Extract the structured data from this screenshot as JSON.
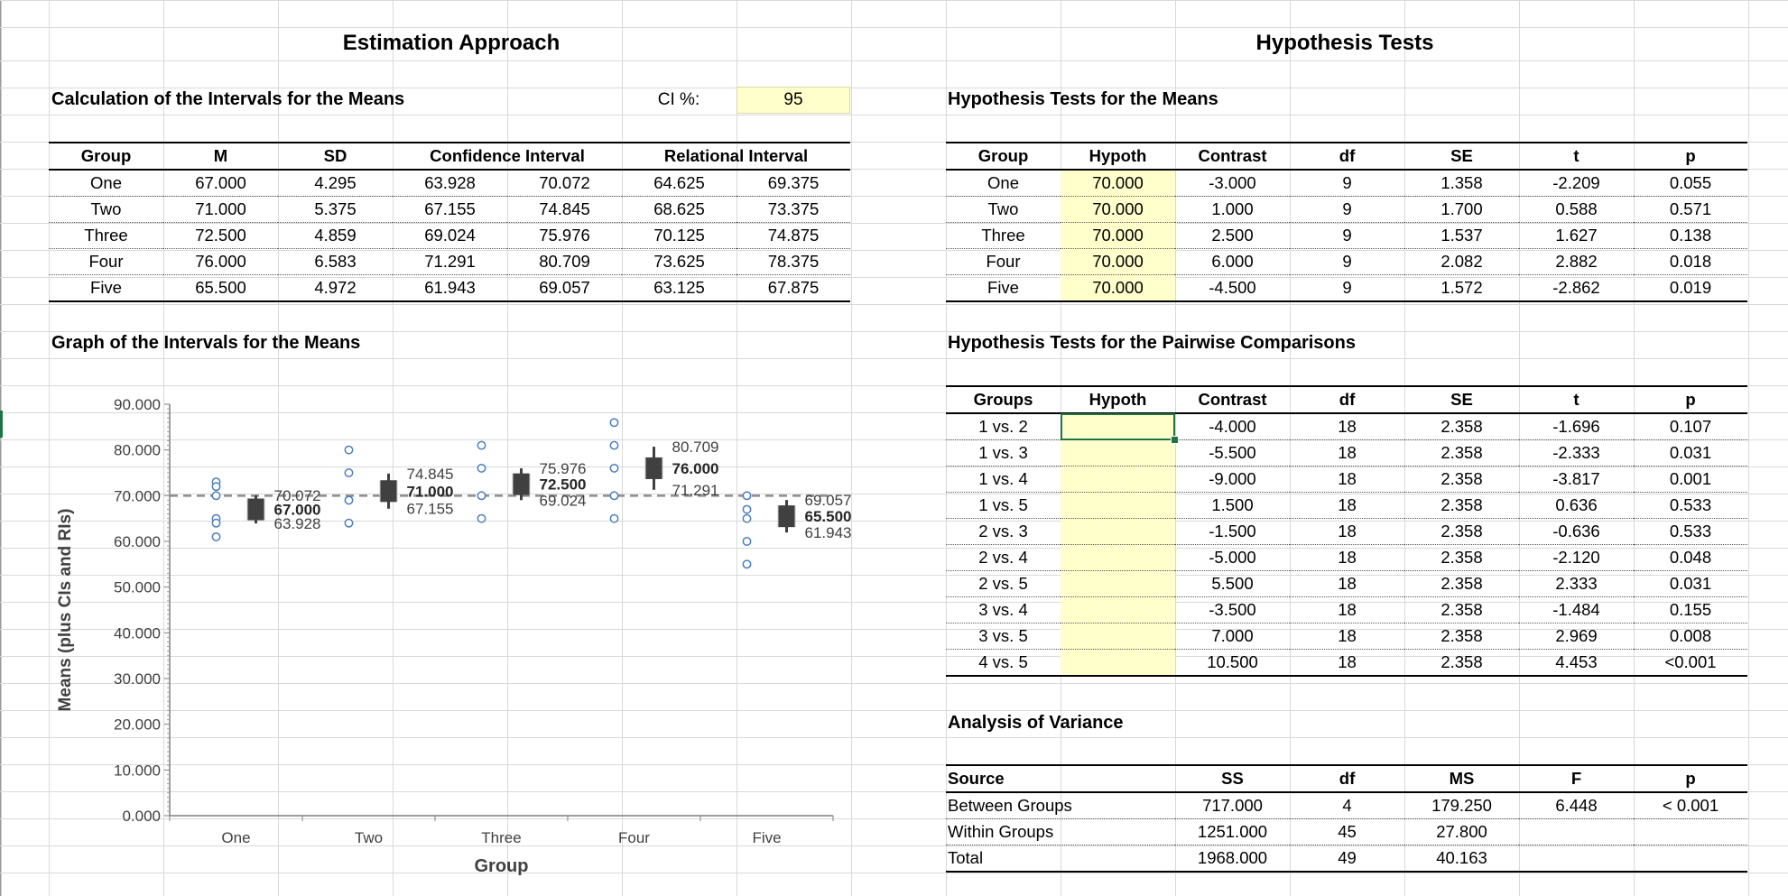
{
  "estimation": {
    "title": "Estimation Approach",
    "calc_title": "Calculation of the Intervals for the Means",
    "ci_label": "CI %:",
    "ci_value": "95",
    "headers": {
      "group": "Group",
      "m": "M",
      "sd": "SD",
      "ci": "Confidence Interval",
      "ri": "Relational Interval"
    },
    "rows": [
      {
        "group": "One",
        "m": "67.000",
        "sd": "4.295",
        "ci_lo": "63.928",
        "ci_hi": "70.072",
        "ri_lo": "64.625",
        "ri_hi": "69.375"
      },
      {
        "group": "Two",
        "m": "71.000",
        "sd": "5.375",
        "ci_lo": "67.155",
        "ci_hi": "74.845",
        "ri_lo": "68.625",
        "ri_hi": "73.375"
      },
      {
        "group": "Three",
        "m": "72.500",
        "sd": "4.859",
        "ci_lo": "69.024",
        "ci_hi": "75.976",
        "ri_lo": "70.125",
        "ri_hi": "74.875"
      },
      {
        "group": "Four",
        "m": "76.000",
        "sd": "6.583",
        "ci_lo": "71.291",
        "ci_hi": "80.709",
        "ri_lo": "73.625",
        "ri_hi": "78.375"
      },
      {
        "group": "Five",
        "m": "65.500",
        "sd": "4.972",
        "ci_lo": "61.943",
        "ci_hi": "69.057",
        "ri_lo": "63.125",
        "ri_hi": "67.875"
      }
    ],
    "graph_title": "Graph of the Intervals for the Means"
  },
  "hypothesis": {
    "title": "Hypothesis Tests",
    "means_title": "Hypothesis Tests for the Means",
    "means_headers": {
      "group": "Group",
      "hypoth": "Hypoth",
      "contrast": "Contrast",
      "df": "df",
      "se": "SE",
      "t": "t",
      "p": "p"
    },
    "means_rows": [
      {
        "group": "One",
        "hypoth": "70.000",
        "contrast": "-3.000",
        "df": "9",
        "se": "1.358",
        "t": "-2.209",
        "p": "0.055"
      },
      {
        "group": "Two",
        "hypoth": "70.000",
        "contrast": "1.000",
        "df": "9",
        "se": "1.700",
        "t": "0.588",
        "p": "0.571"
      },
      {
        "group": "Three",
        "hypoth": "70.000",
        "contrast": "2.500",
        "df": "9",
        "se": "1.537",
        "t": "1.627",
        "p": "0.138"
      },
      {
        "group": "Four",
        "hypoth": "70.000",
        "contrast": "6.000",
        "df": "9",
        "se": "2.082",
        "t": "2.882",
        "p": "0.018"
      },
      {
        "group": "Five",
        "hypoth": "70.000",
        "contrast": "-4.500",
        "df": "9",
        "se": "1.572",
        "t": "-2.862",
        "p": "0.019"
      }
    ],
    "pair_title": "Hypothesis Tests for the Pairwise Comparisons",
    "pair_headers": {
      "groups": "Groups",
      "hypoth": "Hypoth",
      "contrast": "Contrast",
      "df": "df",
      "se": "SE",
      "t": "t",
      "p": "p"
    },
    "pair_rows": [
      {
        "groups": "1 vs. 2",
        "hypoth": "",
        "contrast": "-4.000",
        "df": "18",
        "se": "2.358",
        "t": "-1.696",
        "p": "0.107"
      },
      {
        "groups": "1 vs. 3",
        "hypoth": "",
        "contrast": "-5.500",
        "df": "18",
        "se": "2.358",
        "t": "-2.333",
        "p": "0.031"
      },
      {
        "groups": "1 vs. 4",
        "hypoth": "",
        "contrast": "-9.000",
        "df": "18",
        "se": "2.358",
        "t": "-3.817",
        "p": "0.001"
      },
      {
        "groups": "1 vs. 5",
        "hypoth": "",
        "contrast": "1.500",
        "df": "18",
        "se": "2.358",
        "t": "0.636",
        "p": "0.533"
      },
      {
        "groups": "2 vs. 3",
        "hypoth": "",
        "contrast": "-1.500",
        "df": "18",
        "se": "2.358",
        "t": "-0.636",
        "p": "0.533"
      },
      {
        "groups": "2 vs. 4",
        "hypoth": "",
        "contrast": "-5.000",
        "df": "18",
        "se": "2.358",
        "t": "-2.120",
        "p": "0.048"
      },
      {
        "groups": "2 vs. 5",
        "hypoth": "",
        "contrast": "5.500",
        "df": "18",
        "se": "2.358",
        "t": "2.333",
        "p": "0.031"
      },
      {
        "groups": "3 vs. 4",
        "hypoth": "",
        "contrast": "-3.500",
        "df": "18",
        "se": "2.358",
        "t": "-1.484",
        "p": "0.155"
      },
      {
        "groups": "3 vs. 5",
        "hypoth": "",
        "contrast": "7.000",
        "df": "18",
        "se": "2.358",
        "t": "2.969",
        "p": "0.008"
      },
      {
        "groups": "4 vs. 5",
        "hypoth": "",
        "contrast": "10.500",
        "df": "18",
        "se": "2.358",
        "t": "4.453",
        "p": "<0.001"
      }
    ],
    "anova_title": "Analysis of Variance",
    "anova_headers": {
      "source": "Source",
      "ss": "SS",
      "df": "df",
      "ms": "MS",
      "f": "F",
      "p": "p"
    },
    "anova_rows": [
      {
        "source": "Between Groups",
        "ss": "717.000",
        "df": "4",
        "ms": "179.250",
        "f": "6.448",
        "p": "< 0.001"
      },
      {
        "source": "Within Groups",
        "ss": "1251.000",
        "df": "45",
        "ms": "27.800",
        "f": "",
        "p": ""
      },
      {
        "source": "Total",
        "ss": "1968.000",
        "df": "49",
        "ms": "40.163",
        "f": "",
        "p": ""
      }
    ]
  },
  "colors": {
    "input_fill": "#ffffcc",
    "selection": "#217346",
    "marker": "#4a7ebb",
    "mean_bar": "#404040",
    "ri_bar": "#c8c8c8"
  },
  "chart_data": {
    "type": "scatter",
    "xlabel": "Group",
    "ylabel": "Means (plus CIs and RIs)",
    "categories": [
      "One",
      "Two",
      "Three",
      "Four",
      "Five"
    ],
    "ylim": [
      0,
      90
    ],
    "yticks": [
      "0.000",
      "10.000",
      "20.000",
      "30.000",
      "40.000",
      "50.000",
      "60.000",
      "70.000",
      "80.000",
      "90.000"
    ],
    "reference_line": 70,
    "means": [
      67.0,
      71.0,
      72.5,
      76.0,
      65.5
    ],
    "ci_lower": [
      63.928,
      67.155,
      69.024,
      71.291,
      61.943
    ],
    "ci_upper": [
      70.072,
      74.845,
      75.976,
      80.709,
      69.057
    ],
    "ri_lower": [
      64.625,
      68.625,
      70.125,
      73.625,
      63.125
    ],
    "ri_upper": [
      69.375,
      73.375,
      74.875,
      78.375,
      67.875
    ],
    "labels": [
      {
        "hi": "70.072",
        "mean": "67.000",
        "lo": "63.928"
      },
      {
        "hi": "74.845",
        "mean": "71.000",
        "lo": "67.155"
      },
      {
        "hi": "75.976",
        "mean": "72.500",
        "lo": "69.024"
      },
      {
        "hi": "80.709",
        "mean": "76.000",
        "lo": "71.291"
      },
      {
        "hi": "69.057",
        "mean": "65.500",
        "lo": "61.943"
      }
    ],
    "raw_points": [
      [
        73,
        72,
        70,
        65,
        64,
        61
      ],
      [
        80,
        75,
        69,
        64
      ],
      [
        81,
        76,
        70,
        65
      ],
      [
        86,
        81,
        76,
        70,
        65
      ],
      [
        70,
        67,
        65,
        60,
        55
      ]
    ]
  }
}
